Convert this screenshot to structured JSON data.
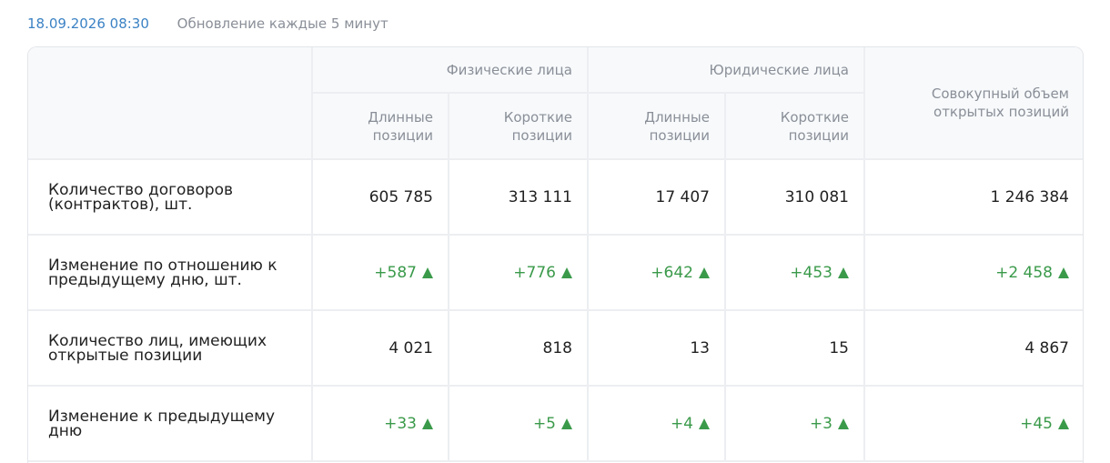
{
  "header": {
    "timestamp": "18.09.2026 08:30",
    "update_note": "Обновление каждые 5 минут"
  },
  "table": {
    "groups": [
      "Физические лица",
      "Юридические лица"
    ],
    "subheaders": [
      "Длинные позиции",
      "Короткие позиции",
      "Длинные позиции",
      "Короткие позиции"
    ],
    "total_header": "Совокупный объем открытых позиций",
    "rows": [
      {
        "label": "Количество договоров (контрактов), шт.",
        "cells": [
          "605 785",
          "313 111",
          "17 407",
          "310 081",
          "1 246 384"
        ]
      },
      {
        "label": "Изменение по отношению к предыдущему дню, шт.",
        "cells": [
          "+587",
          "+776",
          "+642",
          "+453",
          "+2 458"
        ]
      },
      {
        "label": "Количество лиц, имеющих открытые позиции",
        "cells": [
          "4 021",
          "818",
          "13",
          "15",
          "4 867"
        ]
      },
      {
        "label": "Изменение к предыдущему дню",
        "cells": [
          "+33",
          "+5",
          "+4",
          "+3",
          "+45"
        ]
      }
    ]
  }
}
